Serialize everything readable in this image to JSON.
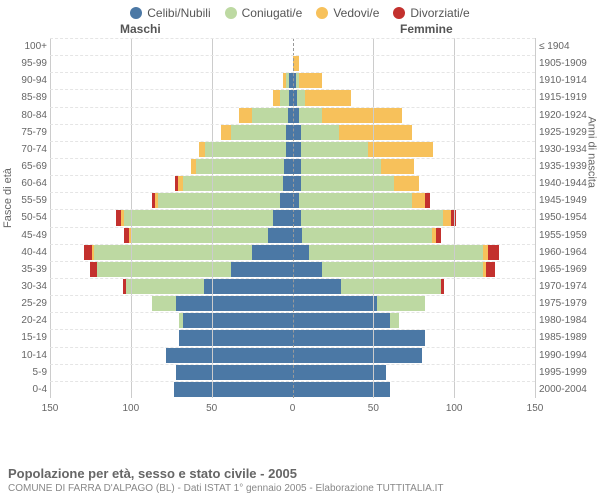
{
  "legend": [
    {
      "label": "Celibi/Nubili",
      "color": "#4b78a5"
    },
    {
      "label": "Coniugati/e",
      "color": "#bdd9a2"
    },
    {
      "label": "Vedovi/e",
      "color": "#f7c15b"
    },
    {
      "label": "Divorziati/e",
      "color": "#c3312e"
    }
  ],
  "headers": {
    "male": "Maschi",
    "female": "Femmine"
  },
  "axis_y_left": "Fasce di età",
  "axis_y_right": "Anni di nascita",
  "x_range": {
    "min": -150,
    "max": 150
  },
  "x_ticks": [
    -150,
    -100,
    -50,
    0,
    50,
    100,
    150
  ],
  "colors": {
    "grid": "#cccccc",
    "grid_dash": "#e5e5e5",
    "center": "#999999",
    "bg": "#ffffff"
  },
  "rows": [
    {
      "age": "100+",
      "birth": "≤ 1904",
      "m": {
        "cel": 0,
        "con": 0,
        "ved": 0,
        "div": 0
      },
      "f": {
        "cel": 0,
        "con": 0,
        "ved": 0,
        "div": 0
      }
    },
    {
      "age": "95-99",
      "birth": "1905-1909",
      "m": {
        "cel": 0,
        "con": 0,
        "ved": 0,
        "div": 0
      },
      "f": {
        "cel": 0,
        "con": 0,
        "ved": 4,
        "div": 0
      }
    },
    {
      "age": "90-94",
      "birth": "1910-1914",
      "m": {
        "cel": 2,
        "con": 2,
        "ved": 2,
        "div": 0
      },
      "f": {
        "cel": 2,
        "con": 2,
        "ved": 14,
        "div": 0
      }
    },
    {
      "age": "85-89",
      "birth": "1915-1919",
      "m": {
        "cel": 2,
        "con": 6,
        "ved": 4,
        "div": 0
      },
      "f": {
        "cel": 3,
        "con": 5,
        "ved": 28,
        "div": 0
      }
    },
    {
      "age": "80-84",
      "birth": "1920-1924",
      "m": {
        "cel": 3,
        "con": 22,
        "ved": 8,
        "div": 0
      },
      "f": {
        "cel": 4,
        "con": 14,
        "ved": 50,
        "div": 0
      }
    },
    {
      "age": "75-79",
      "birth": "1925-1929",
      "m": {
        "cel": 4,
        "con": 34,
        "ved": 6,
        "div": 0
      },
      "f": {
        "cel": 5,
        "con": 24,
        "ved": 45,
        "div": 0
      }
    },
    {
      "age": "70-74",
      "birth": "1930-1934",
      "m": {
        "cel": 4,
        "con": 50,
        "ved": 4,
        "div": 0
      },
      "f": {
        "cel": 5,
        "con": 42,
        "ved": 40,
        "div": 0
      }
    },
    {
      "age": "65-69",
      "birth": "1935-1939",
      "m": {
        "cel": 5,
        "con": 55,
        "ved": 3,
        "div": 0
      },
      "f": {
        "cel": 5,
        "con": 50,
        "ved": 20,
        "div": 0
      }
    },
    {
      "age": "60-64",
      "birth": "1940-1944",
      "m": {
        "cel": 6,
        "con": 62,
        "ved": 3,
        "div": 2
      },
      "f": {
        "cel": 5,
        "con": 58,
        "ved": 15,
        "div": 0
      }
    },
    {
      "age": "55-59",
      "birth": "1945-1949",
      "m": {
        "cel": 8,
        "con": 75,
        "ved": 2,
        "div": 2
      },
      "f": {
        "cel": 4,
        "con": 70,
        "ved": 8,
        "div": 3
      }
    },
    {
      "age": "50-54",
      "birth": "1950-1954",
      "m": {
        "cel": 12,
        "con": 92,
        "ved": 2,
        "div": 3
      },
      "f": {
        "cel": 5,
        "con": 88,
        "ved": 5,
        "div": 3
      }
    },
    {
      "age": "45-49",
      "birth": "1955-1959",
      "m": {
        "cel": 15,
        "con": 85,
        "ved": 1,
        "div": 3
      },
      "f": {
        "cel": 6,
        "con": 80,
        "ved": 3,
        "div": 3
      }
    },
    {
      "age": "40-44",
      "birth": "1960-1964",
      "m": {
        "cel": 25,
        "con": 98,
        "ved": 1,
        "div": 5
      },
      "f": {
        "cel": 10,
        "con": 108,
        "ved": 3,
        "div": 7
      }
    },
    {
      "age": "35-39",
      "birth": "1965-1969",
      "m": {
        "cel": 38,
        "con": 83,
        "ved": 0,
        "div": 4
      },
      "f": {
        "cel": 18,
        "con": 100,
        "ved": 2,
        "div": 5
      }
    },
    {
      "age": "30-34",
      "birth": "1970-1974",
      "m": {
        "cel": 55,
        "con": 48,
        "ved": 0,
        "div": 2
      },
      "f": {
        "cel": 30,
        "con": 62,
        "ved": 0,
        "div": 2
      }
    },
    {
      "age": "25-29",
      "birth": "1975-1979",
      "m": {
        "cel": 72,
        "con": 15,
        "ved": 0,
        "div": 0
      },
      "f": {
        "cel": 52,
        "con": 30,
        "ved": 0,
        "div": 0
      }
    },
    {
      "age": "20-24",
      "birth": "1980-1984",
      "m": {
        "cel": 68,
        "con": 2,
        "ved": 0,
        "div": 0
      },
      "f": {
        "cel": 60,
        "con": 6,
        "ved": 0,
        "div": 0
      }
    },
    {
      "age": "15-19",
      "birth": "1985-1989",
      "m": {
        "cel": 70,
        "con": 0,
        "ved": 0,
        "div": 0
      },
      "f": {
        "cel": 82,
        "con": 0,
        "ved": 0,
        "div": 0
      }
    },
    {
      "age": "10-14",
      "birth": "1990-1994",
      "m": {
        "cel": 78,
        "con": 0,
        "ved": 0,
        "div": 0
      },
      "f": {
        "cel": 80,
        "con": 0,
        "ved": 0,
        "div": 0
      }
    },
    {
      "age": "5-9",
      "birth": "1995-1999",
      "m": {
        "cel": 72,
        "con": 0,
        "ved": 0,
        "div": 0
      },
      "f": {
        "cel": 58,
        "con": 0,
        "ved": 0,
        "div": 0
      }
    },
    {
      "age": "0-4",
      "birth": "2000-2004",
      "m": {
        "cel": 73,
        "con": 0,
        "ved": 0,
        "div": 0
      },
      "f": {
        "cel": 60,
        "con": 0,
        "ved": 0,
        "div": 0
      }
    }
  ],
  "footer": {
    "title": "Popolazione per età, sesso e stato civile - 2005",
    "sub": "COMUNE DI FARRA D'ALPAGO (BL) - Dati ISTAT 1° gennaio 2005 - Elaborazione TUTTITALIA.IT"
  }
}
